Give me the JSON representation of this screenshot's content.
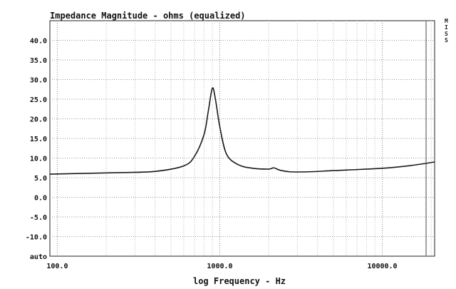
{
  "chart_data": {
    "type": "line",
    "title": "Impedance Magnitude - ohms (equalized)",
    "xlabel": "log Frequency - Hz",
    "ylabel": "",
    "x_scale": "log",
    "xlim": [
      90,
      21000
    ],
    "ylim": [
      -15,
      45
    ],
    "x_ticks": [
      {
        "value": 100,
        "label": "100.0"
      },
      {
        "value": 1000,
        "label": "1000.0"
      },
      {
        "value": 10000,
        "label": "10000.0"
      }
    ],
    "y_ticks": [
      {
        "value": 40,
        "label": "40.0"
      },
      {
        "value": 35,
        "label": "35.0"
      },
      {
        "value": 30,
        "label": "30.0"
      },
      {
        "value": 25,
        "label": "25.0"
      },
      {
        "value": 20,
        "label": "20.0"
      },
      {
        "value": 15,
        "label": "15.0"
      },
      {
        "value": 10,
        "label": "10.0"
      },
      {
        "value": 5,
        "label": "5.0"
      },
      {
        "value": 0,
        "label": "0.0"
      },
      {
        "value": -5,
        "label": "-5.0"
      },
      {
        "value": -10,
        "label": "-10.0"
      },
      {
        "value": -15,
        "label": "auto"
      }
    ],
    "right_label": "M I S S",
    "grid": true,
    "series": [
      {
        "color": "#1a1a1a",
        "x": [
          90,
          150,
          250,
          400,
          600,
          700,
          800,
          850,
          900,
          940,
          1000,
          1100,
          1300,
          1600,
          2000,
          2150,
          2350,
          2700,
          3500,
          5000,
          10000,
          15000,
          21000
        ],
        "y": [
          5.9,
          6.1,
          6.3,
          6.6,
          8.0,
          10.5,
          16.0,
          22.0,
          27.8,
          25.0,
          18.0,
          11.0,
          8.3,
          7.4,
          7.2,
          7.5,
          6.9,
          6.5,
          6.5,
          6.8,
          7.4,
          8.1,
          9.0
        ]
      }
    ]
  }
}
